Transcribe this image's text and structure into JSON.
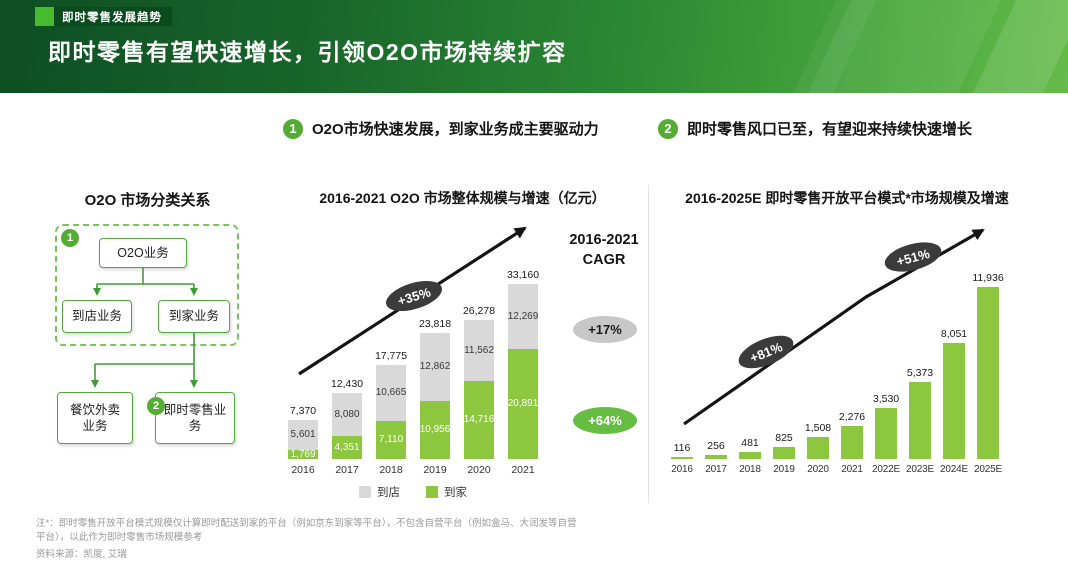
{
  "header": {
    "tag": "即时零售发展趋势",
    "title": "即时零售有望快速增长，引领O2O市场持续扩容"
  },
  "sections": [
    {
      "num": "1",
      "label": "O2O市场快速发展，到家业务成主要驱动力"
    },
    {
      "num": "2",
      "label": "即时零售风口已至，有望迎来持续快速增长"
    }
  ],
  "diagram": {
    "title": "O2O 市场分类关系",
    "marker_1": "1",
    "marker_2": "2",
    "nodes": {
      "root": "O2O业务",
      "store": "到店业务",
      "home": "到家业务",
      "food_delivery": "餐饮外卖业务",
      "instant_retail": "即时零售业务"
    }
  },
  "chart_data": [
    {
      "type": "bar",
      "stacked": true,
      "title": "2016-2021 O2O 市场整体规模与增速（亿元）",
      "unit": "亿元",
      "categories": [
        "2016",
        "2017",
        "2018",
        "2019",
        "2020",
        "2021"
      ],
      "series": [
        {
          "name": "到店",
          "color": "#d9d9d9",
          "values": [
            5601,
            8080,
            10665,
            12862,
            11562,
            12269
          ]
        },
        {
          "name": "到家",
          "color": "#8dc63f",
          "values": [
            1769,
            4351,
            7110,
            10956,
            14716,
            20891
          ]
        }
      ],
      "totals": [
        7370,
        12430,
        17775,
        23818,
        26278,
        33160
      ],
      "growth_badge": "+35%",
      "cagr_title": "2016-2021 CAGR",
      "cagr_badges": [
        {
          "label": "+17%",
          "series": "到店",
          "color": "#c7c7c7"
        },
        {
          "label": "+64%",
          "series": "到家",
          "color": "#67bd42"
        }
      ],
      "legend_position": "bottom"
    },
    {
      "type": "bar",
      "stacked": false,
      "title": "2016-2025E 即时零售开放平台模式*市场规模及增速",
      "categories": [
        "2016",
        "2017",
        "2018",
        "2019",
        "2020",
        "2021",
        "2022E",
        "2023E",
        "2024E",
        "2025E"
      ],
      "values": [
        116,
        256,
        481,
        825,
        1508,
        2276,
        3530,
        5373,
        8051,
        11936
      ],
      "bar_color": "#8dc63f",
      "growth_badges": [
        "+81%",
        "+51%"
      ]
    }
  ],
  "footer": {
    "note": "注*：即时零售开放平台模式规模仅计算即时配送到家的平台（例如京东到家等平台），不包含自营平台（例如盒马、大润发等自营平台），以此作为即时零售市场规模参考",
    "source": "资料来源：凯度, 艾瑞"
  },
  "colors": {
    "accent_green": "#54ac33",
    "bar_green": "#8dc63f",
    "bar_gray": "#d9d9d9",
    "header_gradient_start": "#0d4e23",
    "header_gradient_end": "#66bb4a"
  }
}
